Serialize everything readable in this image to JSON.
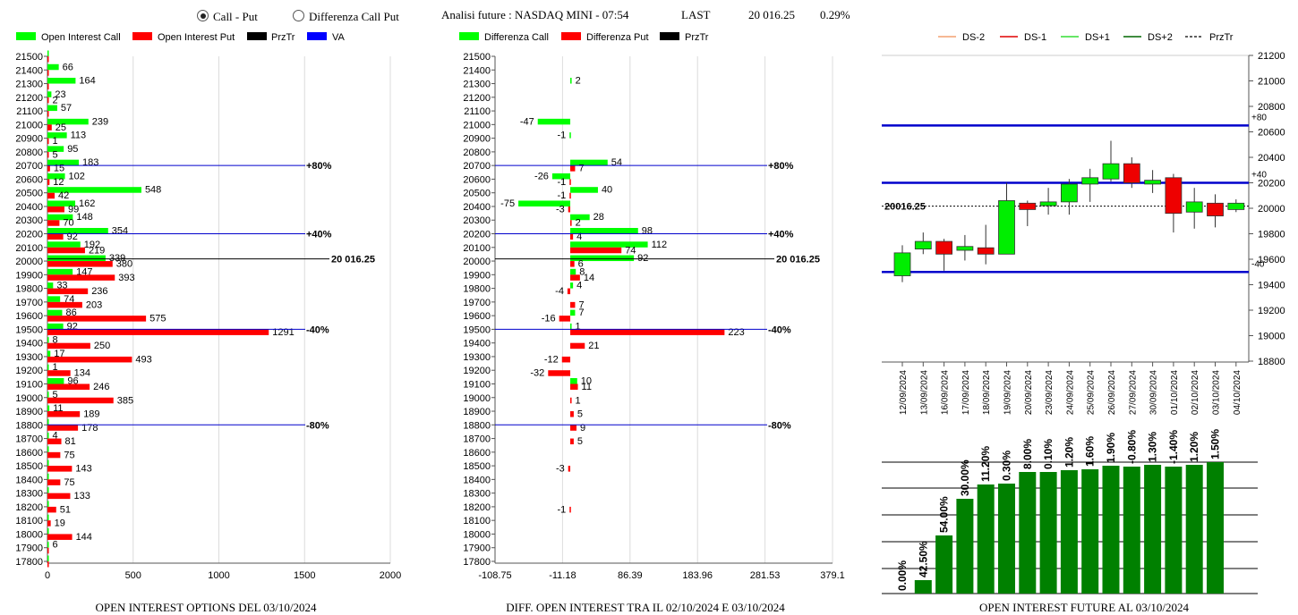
{
  "header": {
    "radio_call_put": "Call - Put",
    "radio_diff": "Differenza Call Put",
    "analysis": "Analisi future : NASDAQ MINI - 07:54",
    "last_label": "LAST",
    "last_value": "20 016.25",
    "last_pct": "0.29%"
  },
  "colors": {
    "call": "#00ff00",
    "put": "#ff0000",
    "prztr": "#000000",
    "va": "#0000ff",
    "future_bar": "#008000",
    "level_line": "#0000cc"
  },
  "panels": {
    "oi": {
      "title": "OPEN INTEREST OPTIONS DEL 03/10/2024",
      "legend": [
        "Open Interest Call",
        "Open Interest Put",
        "PrzTr",
        "VA"
      ],
      "price_label": "20 016.25",
      "levels": [
        {
          "strike": 20700,
          "label": "+80%"
        },
        {
          "strike": 20200,
          "label": "+40%"
        },
        {
          "strike": 19500,
          "label": "-40%"
        },
        {
          "strike": 18800,
          "label": "-80%"
        }
      ],
      "x_ticks": [
        "0",
        "500",
        "1000",
        "1500",
        "2000"
      ]
    },
    "diff": {
      "title": "DIFF. OPEN INTEREST TRA IL 02/10/2024 E 03/10/2024",
      "legend": [
        "Differenza Call",
        "Differenza Put",
        "PrzTr"
      ],
      "price_label": "20 016.25",
      "levels": [
        {
          "strike": 20700,
          "label": "+80%"
        },
        {
          "strike": 20200,
          "label": "+40%"
        },
        {
          "strike": 19500,
          "label": "-40%"
        },
        {
          "strike": 18800,
          "label": "-80%"
        }
      ],
      "x_ticks": [
        "-108.75",
        "-11.18",
        "86.39",
        "183.96",
        "281.53",
        "379.1"
      ]
    },
    "future": {
      "legend": [
        "DS-2",
        "DS-1",
        "DS+1",
        "DS+2",
        "PrzTr"
      ],
      "price_label": "20016.25",
      "level_labels": [
        "+80",
        "+40",
        "-40"
      ],
      "y_ticks": [
        "21200",
        "21000",
        "20800",
        "20600",
        "20400",
        "20200",
        "20000",
        "19800",
        "19600",
        "19400",
        "19200",
        "19000",
        "18800"
      ],
      "bottom_title": "OPEN INTEREST FUTURE AL 03/10/2024"
    }
  },
  "chart_data": [
    {
      "type": "bar",
      "title": "OPEN INTEREST OPTIONS DEL 03/10/2024",
      "orientation": "horizontal",
      "categories": [
        21500,
        21400,
        21300,
        21200,
        21100,
        21000,
        20900,
        20800,
        20700,
        20600,
        20500,
        20400,
        20300,
        20200,
        20100,
        20000,
        19900,
        19800,
        19700,
        19600,
        19500,
        19400,
        19300,
        19200,
        19100,
        19000,
        18900,
        18800,
        18700,
        18600,
        18500,
        18400,
        18300,
        18200,
        18100,
        18000,
        17900,
        17800
      ],
      "series": [
        {
          "name": "Open Interest Call",
          "values": [
            0,
            66,
            164,
            23,
            57,
            239,
            113,
            95,
            183,
            102,
            548,
            162,
            148,
            354,
            192,
            339,
            147,
            33,
            74,
            86,
            92,
            8,
            17,
            1,
            96,
            5,
            11,
            0,
            4,
            0,
            0,
            0,
            0,
            0,
            0,
            0,
            6,
            0
          ]
        },
        {
          "name": "Open Interest Put",
          "values": [
            0,
            0,
            0,
            2,
            0,
            25,
            1,
            5,
            15,
            12,
            42,
            99,
            70,
            92,
            219,
            380,
            393,
            236,
            203,
            575,
            1291,
            250,
            493,
            134,
            246,
            385,
            189,
            178,
            81,
            75,
            143,
            75,
            133,
            51,
            19,
            144,
            0,
            0
          ]
        }
      ],
      "xlim": [
        0,
        2000
      ],
      "price": 20016.25
    },
    {
      "type": "bar",
      "title": "DIFF. OPEN INTEREST TRA IL 02/10/2024 E 03/10/2024",
      "orientation": "horizontal",
      "categories": [
        21500,
        21400,
        21300,
        21200,
        21100,
        21000,
        20900,
        20800,
        20700,
        20600,
        20500,
        20400,
        20300,
        20200,
        20100,
        20000,
        19900,
        19800,
        19700,
        19600,
        19500,
        19400,
        19300,
        19200,
        19100,
        19000,
        18900,
        18800,
        18700,
        18600,
        18500,
        18400,
        18300,
        18200,
        18100,
        18000,
        17900,
        17800
      ],
      "series": [
        {
          "name": "Differenza Call",
          "values": [
            null,
            null,
            2,
            null,
            null,
            -47,
            -1,
            null,
            54,
            -26,
            40,
            -75,
            28,
            98,
            112,
            92,
            8,
            4,
            null,
            7,
            1,
            null,
            null,
            null,
            10,
            null,
            null,
            null,
            null,
            null,
            null,
            null,
            null,
            null,
            null,
            null,
            null,
            null
          ]
        },
        {
          "name": "Differenza Put",
          "values": [
            null,
            null,
            null,
            null,
            null,
            null,
            null,
            null,
            7,
            -1,
            -1,
            -3,
            2,
            4,
            74,
            6,
            14,
            -4,
            7,
            -16,
            223,
            21,
            -12,
            -32,
            11,
            1,
            5,
            9,
            5,
            null,
            -3,
            null,
            null,
            -1,
            null,
            null,
            null,
            null
          ]
        }
      ],
      "xlim": [
        -108.75,
        379.1
      ],
      "price": 20016.25
    },
    {
      "type": "candlestick",
      "x": [
        "12/09/2024",
        "13/09/2024",
        "16/09/2024",
        "17/09/2024",
        "18/09/2024",
        "19/09/2024",
        "20/09/2024",
        "23/09/2024",
        "24/09/2024",
        "25/09/2024",
        "26/09/2024",
        "27/09/2024",
        "30/09/2024",
        "01/10/2024",
        "02/10/2024",
        "03/10/2024",
        "04/10/2024"
      ],
      "open": [
        19470,
        19680,
        19740,
        19670,
        19690,
        19640,
        20040,
        20020,
        20050,
        20190,
        20230,
        20350,
        20190,
        20240,
        19970,
        20040,
        19990
      ],
      "close": [
        19650,
        19740,
        19640,
        19700,
        19640,
        20060,
        19990,
        20050,
        20190,
        20240,
        20350,
        20200,
        20220,
        19960,
        20050,
        19940,
        20040
      ],
      "high": [
        19710,
        19810,
        19760,
        19790,
        19870,
        20200,
        20060,
        20160,
        20230,
        20310,
        20530,
        20400,
        20300,
        20270,
        20160,
        20110,
        20070
      ],
      "low": [
        19420,
        19640,
        19510,
        19590,
        19560,
        19640,
        19860,
        19950,
        19950,
        20050,
        20210,
        20160,
        20120,
        19810,
        19840,
        19850,
        19970
      ],
      "ylim": [
        18800,
        21200
      ],
      "levels": [
        {
          "label": "+80",
          "value": 20650
        },
        {
          "label": "+40",
          "value": 20200
        },
        {
          "label": "-40",
          "value": 19500
        }
      ],
      "price": 20016.25
    },
    {
      "type": "bar",
      "title": "OPEN INTEREST FUTURE AL 03/10/2024",
      "categories": [
        "12/09/2024",
        "13/09/2024",
        "16/09/2024",
        "17/09/2024",
        "18/09/2024",
        "19/09/2024",
        "20/09/2024",
        "23/09/2024",
        "24/09/2024",
        "25/09/2024",
        "26/09/2024",
        "27/09/2024",
        "30/09/2024",
        "01/10/2024",
        "02/10/2024",
        "03/10/2024",
        "04/10/2024"
      ],
      "labels": [
        "0.00%",
        "42.50%",
        "54.00%",
        "30.00%",
        "11.20%",
        "0.30%",
        "8.00%",
        "0.10%",
        "1.20%",
        "1.60%",
        "1.90%",
        "-0.80%",
        "1.30%",
        "-1.40%",
        "1.20%",
        "1.50%"
      ],
      "values": [
        0.0,
        42.5,
        54.0,
        30.0,
        11.2,
        0.3,
        8.0,
        0.1,
        1.2,
        1.6,
        1.9,
        -0.8,
        1.3,
        -1.4,
        1.2,
        1.5
      ]
    }
  ]
}
